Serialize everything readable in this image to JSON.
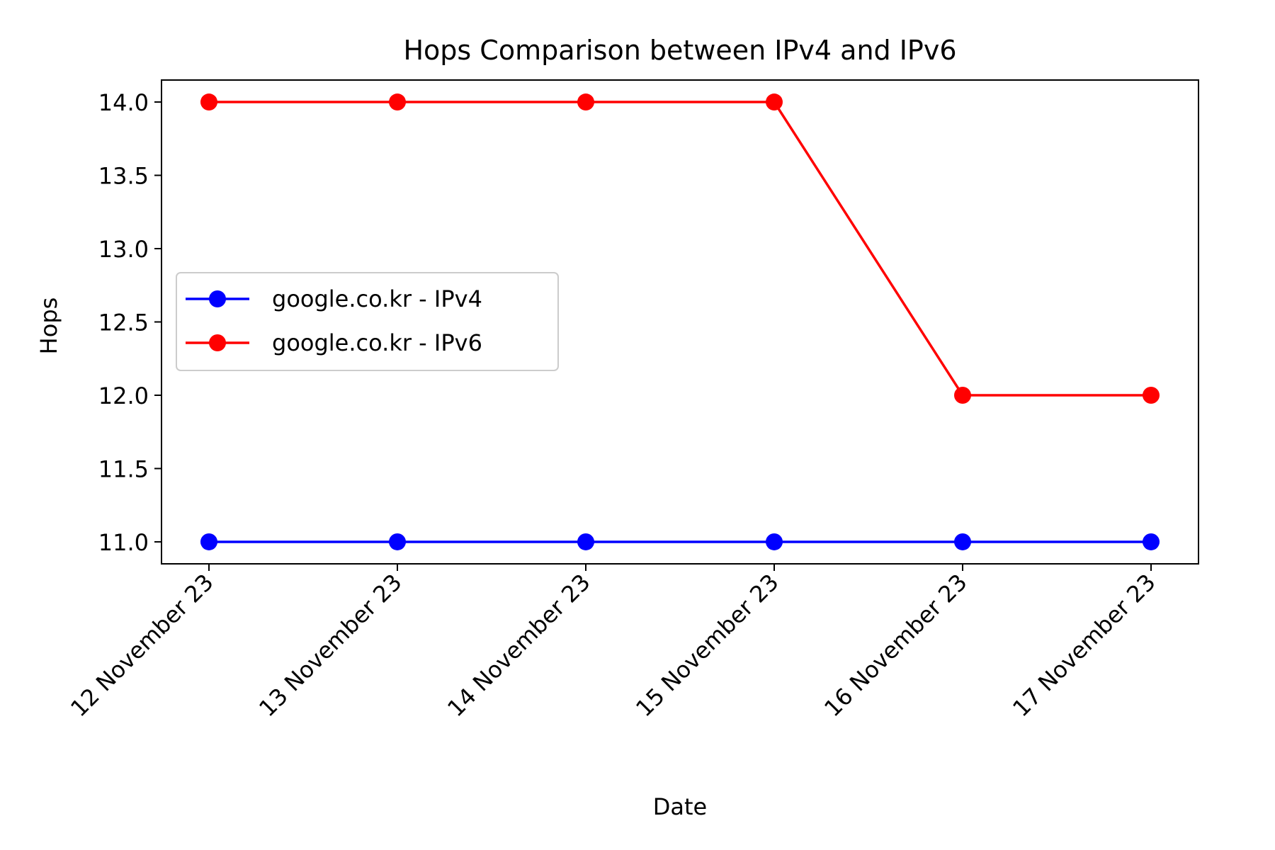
{
  "chart_data": {
    "type": "line",
    "title": "Hops Comparison between IPv4 and IPv6",
    "xlabel": "Date",
    "ylabel": "Hops",
    "categories": [
      "12 November 23",
      "13 November 23",
      "14 November 23",
      "15 November 23",
      "16 November 23",
      "17 November 23"
    ],
    "ylim": [
      10.85,
      14.15
    ],
    "yticks": [
      "11.0",
      "11.5",
      "12.0",
      "12.5",
      "13.0",
      "13.5",
      "14.0"
    ],
    "grid": false,
    "legend_position": "center-left",
    "series": [
      {
        "name": "google.co.kr - IPv4",
        "color": "#0000ff",
        "marker": "circle",
        "values": [
          11,
          11,
          11,
          11,
          11,
          11
        ]
      },
      {
        "name": "google.co.kr - IPv6",
        "color": "#ff0000",
        "marker": "circle",
        "values": [
          14,
          14,
          14,
          14,
          12,
          12
        ]
      }
    ]
  }
}
